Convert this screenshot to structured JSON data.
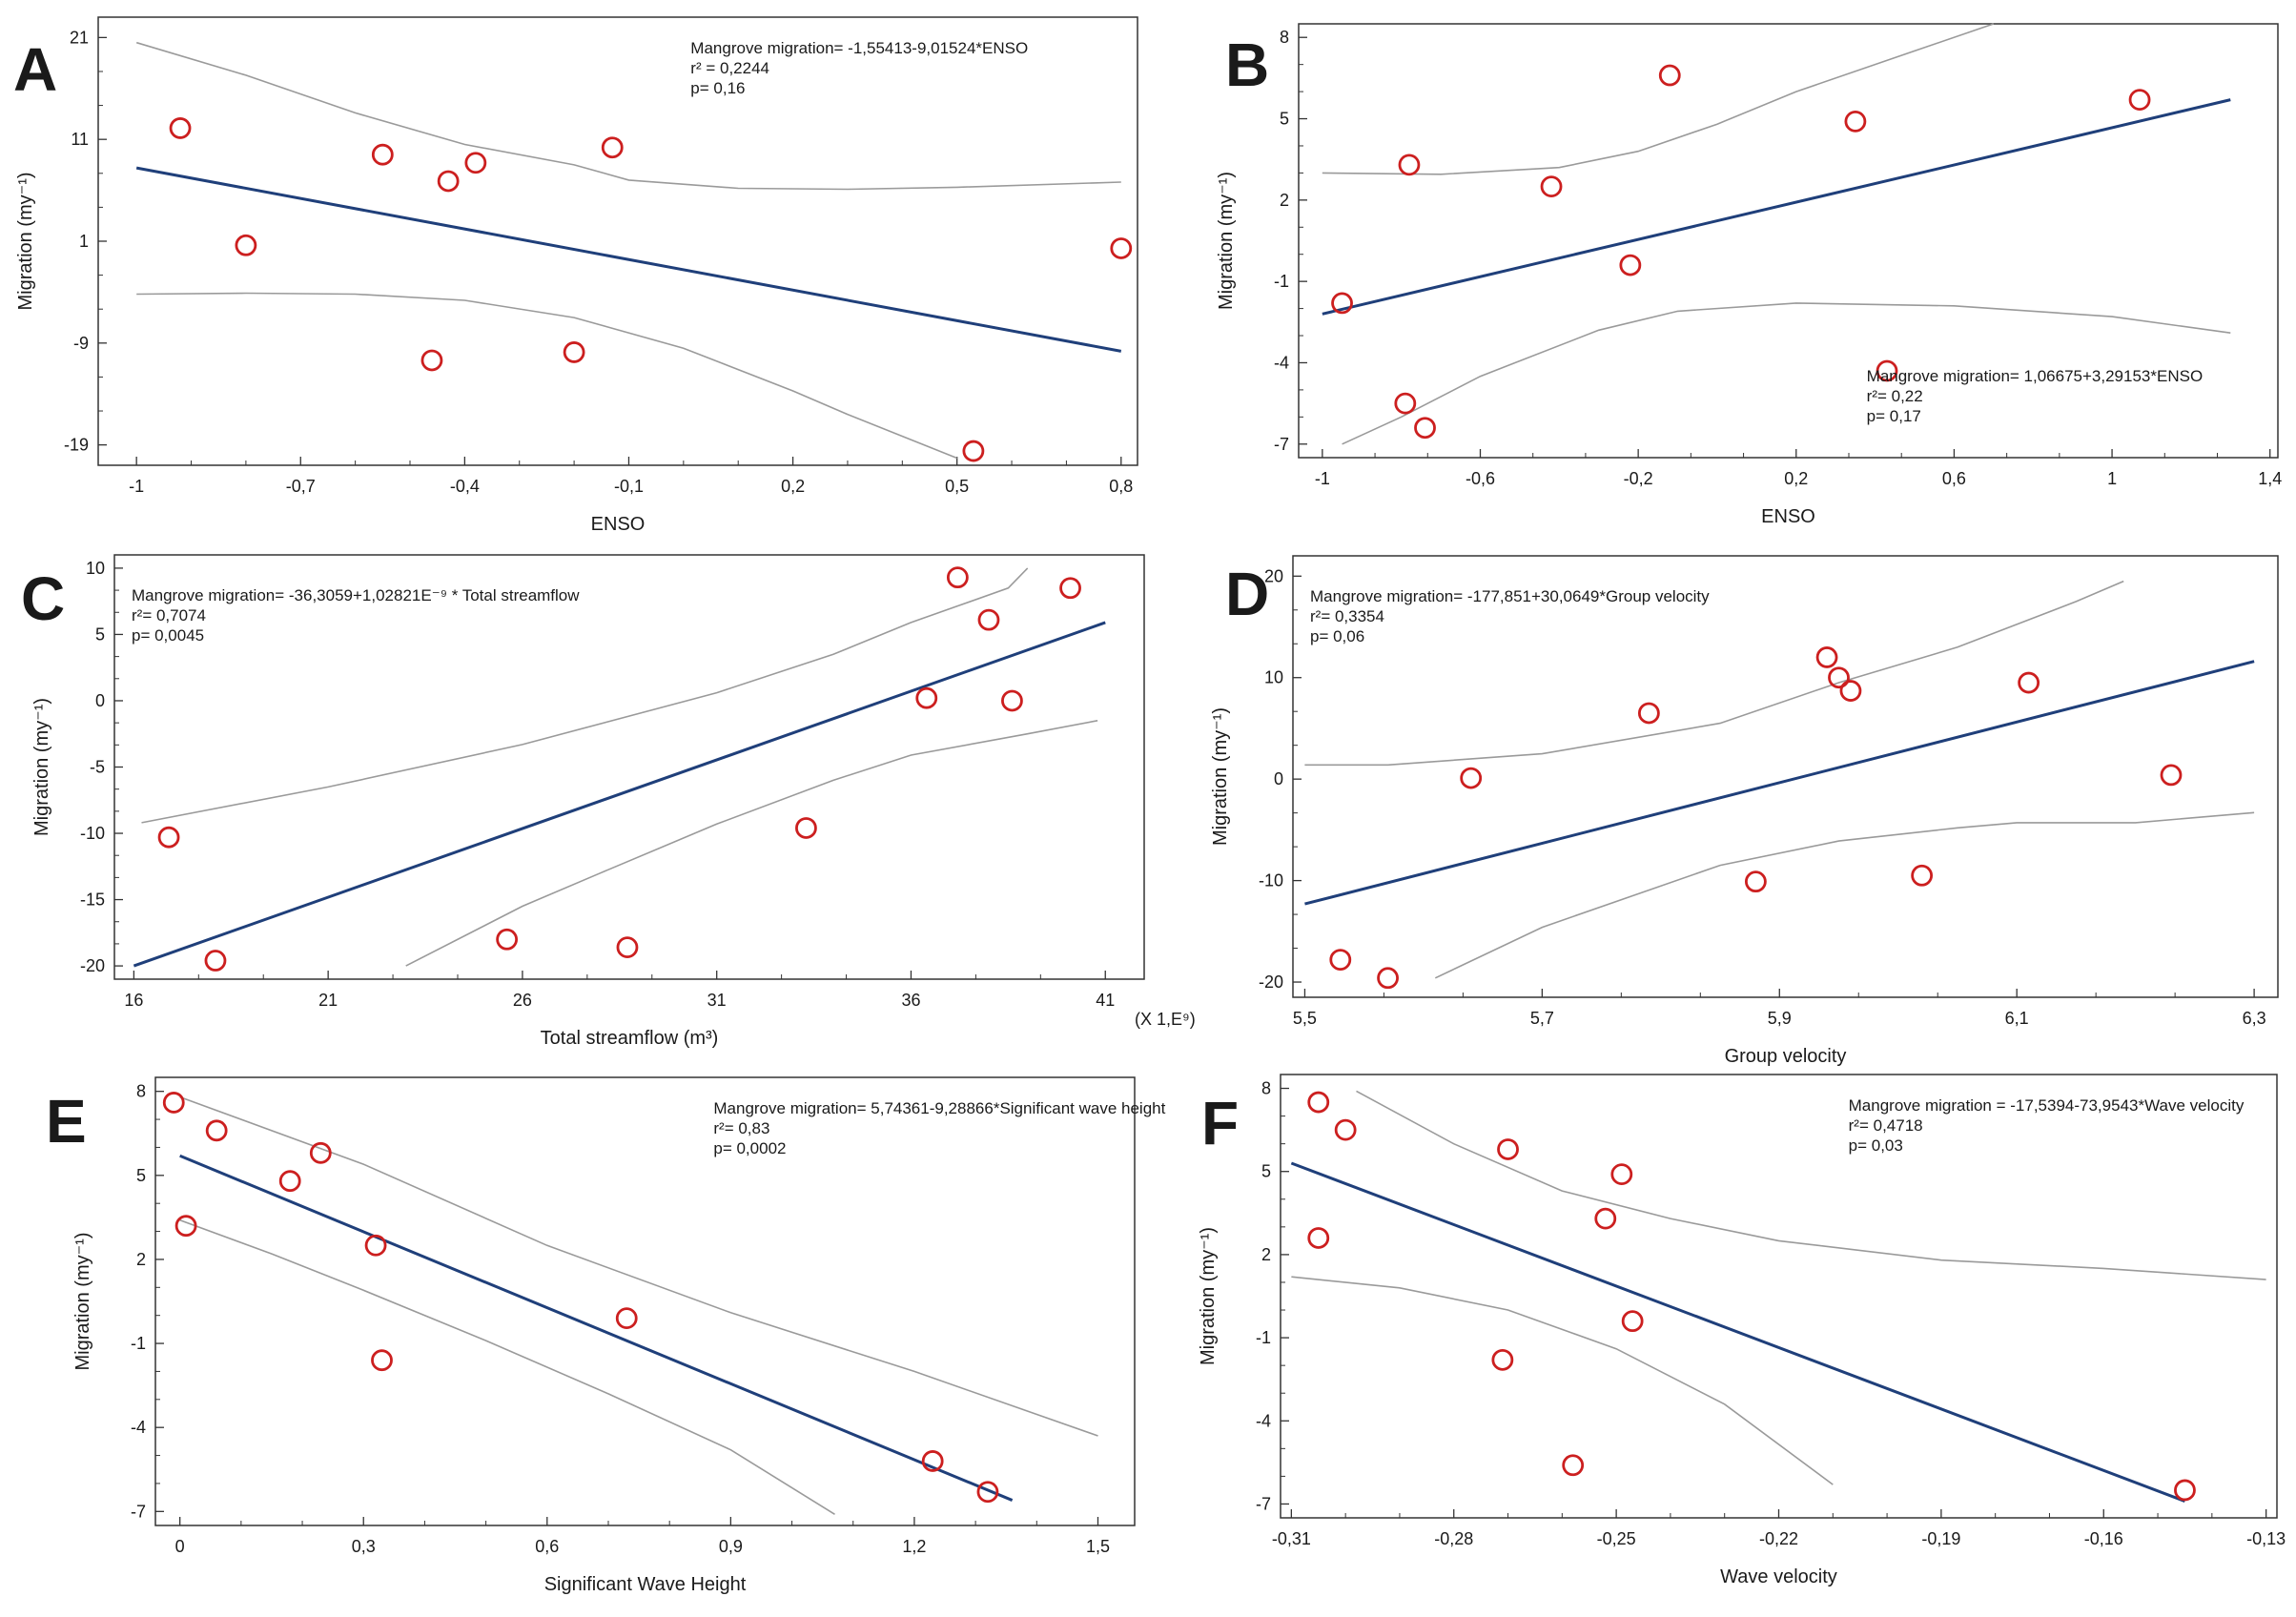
{
  "colors": {
    "regression": "#1f3f7a",
    "confidence": "#9a9a9a",
    "points": "#cc1f1f",
    "axis": "#333333"
  },
  "chart_data": [
    {
      "panel": "A",
      "type": "scatter",
      "xlabel": "ENSO",
      "ylabel": "Migration (my⁻¹)",
      "x_multiplier": "",
      "xlim": [
        -1.07,
        0.83
      ],
      "ylim": [
        -21,
        23
      ],
      "xticks": [
        -1,
        -0.7,
        -0.4,
        -0.1,
        0.2,
        0.5,
        0.8
      ],
      "xtick_labels": [
        "-1",
        "-0,7",
        "-0,4",
        "-0,1",
        "0,2",
        "0,5",
        "0,8"
      ],
      "yticks": [
        21,
        11,
        1,
        -9,
        -19
      ],
      "ytick_labels": [
        "21",
        "11",
        "1",
        "-9",
        "-19"
      ],
      "equation": "Mangrove migration= -1,55413-9,01524*ENSO",
      "r2": "r² = 0,2244",
      "p": "p= 0,16",
      "eq_position": "top-right",
      "points": [
        [
          -0.92,
          12.1
        ],
        [
          -0.8,
          0.6
        ],
        [
          -0.55,
          9.5
        ],
        [
          -0.46,
          -10.7
        ],
        [
          -0.43,
          6.9
        ],
        [
          -0.38,
          8.7
        ],
        [
          -0.2,
          -9.9
        ],
        [
          -0.13,
          10.2
        ],
        [
          0.53,
          -19.6
        ],
        [
          0.8,
          0.3
        ]
      ],
      "fit": [
        [
          -1,
          8.2
        ],
        [
          0.8,
          -9.8
        ]
      ],
      "ci_upper": [
        [
          -1,
          20.5
        ],
        [
          -0.8,
          17.3
        ],
        [
          -0.6,
          13.6
        ],
        [
          -0.4,
          10.5
        ],
        [
          -0.2,
          8.5
        ],
        [
          -0.1,
          7
        ],
        [
          0.1,
          6.2
        ],
        [
          0.3,
          6.1
        ],
        [
          0.5,
          6.3
        ],
        [
          0.8,
          6.8
        ]
      ],
      "ci_lower": [
        [
          -1,
          -4.2
        ],
        [
          -0.8,
          -4.1
        ],
        [
          -0.6,
          -4.2
        ],
        [
          -0.4,
          -4.8
        ],
        [
          -0.2,
          -6.5
        ],
        [
          0,
          -9.5
        ],
        [
          0.2,
          -13.7
        ],
        [
          0.3,
          -16
        ],
        [
          0.5,
          -20.3
        ]
      ]
    },
    {
      "panel": "B",
      "type": "scatter",
      "xlabel": "ENSO",
      "ylabel": "Migration (my⁻¹)",
      "x_multiplier": "",
      "xlim": [
        -1.06,
        1.42
      ],
      "ylim": [
        -7.5,
        8.5
      ],
      "xticks": [
        -1,
        -0.6,
        -0.2,
        0.2,
        0.6,
        1,
        1.4
      ],
      "xtick_labels": [
        "-1",
        "-0,6",
        "-0,2",
        "0,2",
        "0,6",
        "1",
        "1,4"
      ],
      "yticks": [
        8,
        5,
        2,
        -1,
        -4,
        -7
      ],
      "ytick_labels": [
        "8",
        "5",
        "2",
        "-1",
        "-4",
        "-7"
      ],
      "equation": "Mangrove migration= 1,06675+3,29153*ENSO",
      "r2": "r²= 0,22",
      "p": "p= 0,17",
      "eq_position": "bottom-right",
      "points": [
        [
          -0.95,
          -1.8
        ],
        [
          -0.78,
          3.3
        ],
        [
          -0.79,
          -5.5
        ],
        [
          -0.74,
          -6.4
        ],
        [
          -0.42,
          2.5
        ],
        [
          -0.22,
          -0.4
        ],
        [
          -0.12,
          6.6
        ],
        [
          0.35,
          4.9
        ],
        [
          0.43,
          -4.3
        ],
        [
          1.07,
          5.7
        ]
      ],
      "fit": [
        [
          -1,
          -2.2
        ],
        [
          1.3,
          5.7
        ]
      ],
      "ci_upper": [
        [
          -1,
          3
        ],
        [
          -0.7,
          2.95
        ],
        [
          -0.4,
          3.2
        ],
        [
          -0.2,
          3.8
        ],
        [
          0,
          4.8
        ],
        [
          0.2,
          6
        ],
        [
          0.5,
          7.5
        ],
        [
          0.7,
          8.5
        ]
      ],
      "ci_lower": [
        [
          -0.95,
          -7
        ],
        [
          -0.8,
          -6
        ],
        [
          -0.6,
          -4.5
        ],
        [
          -0.3,
          -2.8
        ],
        [
          -0.1,
          -2.1
        ],
        [
          0.2,
          -1.8
        ],
        [
          0.6,
          -1.9
        ],
        [
          1,
          -2.3
        ],
        [
          1.3,
          -2.9
        ]
      ]
    },
    {
      "panel": "C",
      "type": "scatter",
      "xlabel": "Total streamflow (m³)",
      "ylabel": "Migration (my⁻¹)",
      "x_multiplier": "(X 1,E⁹)",
      "xlim": [
        15.5,
        42
      ],
      "ylim": [
        -21,
        11
      ],
      "xticks": [
        16,
        21,
        26,
        31,
        36,
        41
      ],
      "xtick_labels": [
        "16",
        "21",
        "26",
        "31",
        "36",
        "41"
      ],
      "yticks": [
        10,
        5,
        0,
        -5,
        -10,
        -15,
        -20
      ],
      "ytick_labels": [
        "10",
        "5",
        "0",
        "-5",
        "-10",
        "-15",
        "-20"
      ],
      "equation": "Mangrove migration= -36,3059+1,02821E⁻⁹ * Total streamflow",
      "r2": "r²= 0,7074",
      "p": "p= 0,0045",
      "eq_position": "top-left",
      "points": [
        [
          16.9,
          -10.3
        ],
        [
          18.1,
          -19.6
        ],
        [
          25.6,
          -18
        ],
        [
          28.7,
          -18.6
        ],
        [
          33.3,
          -9.6
        ],
        [
          36.4,
          0.2
        ],
        [
          37.2,
          9.3
        ],
        [
          38,
          6.1
        ],
        [
          38.6,
          0
        ],
        [
          40.1,
          8.5
        ]
      ],
      "fit": [
        [
          16,
          -20
        ],
        [
          41,
          5.9
        ]
      ],
      "ci_upper": [
        [
          16.2,
          -9.2
        ],
        [
          21,
          -6.5
        ],
        [
          26,
          -3.3
        ],
        [
          31,
          0.6
        ],
        [
          34,
          3.5
        ],
        [
          36,
          5.9
        ],
        [
          38.5,
          8.5
        ],
        [
          39,
          10
        ]
      ],
      "ci_lower": [
        [
          23,
          -20
        ],
        [
          26,
          -15.5
        ],
        [
          28,
          -13
        ],
        [
          31,
          -9.3
        ],
        [
          34,
          -6
        ],
        [
          36,
          -4.1
        ],
        [
          39,
          -2.5
        ],
        [
          40.8,
          -1.5
        ]
      ]
    },
    {
      "panel": "D",
      "type": "scatter",
      "xlabel": "Group velocity",
      "ylabel": "Migration (my⁻¹)",
      "x_multiplier": "",
      "xlim": [
        5.49,
        6.32
      ],
      "ylim": [
        -21.5,
        22
      ],
      "xticks": [
        5.5,
        5.7,
        5.9,
        6.1,
        6.3
      ],
      "xtick_labels": [
        "5,5",
        "5,7",
        "5,9",
        "6,1",
        "6,3"
      ],
      "yticks": [
        20,
        10,
        0,
        -10,
        -20
      ],
      "ytick_labels": [
        "20",
        "10",
        "0",
        "-10",
        "-20"
      ],
      "equation": "Mangrove migration= -177,851+30,0649*Group velocity",
      "r2": "r²= 0,3354",
      "p": "p= 0,06",
      "eq_position": "top-left",
      "points": [
        [
          5.53,
          -17.8
        ],
        [
          5.57,
          -19.6
        ],
        [
          5.64,
          0.1
        ],
        [
          5.79,
          6.5
        ],
        [
          5.88,
          -10.1
        ],
        [
          5.94,
          12
        ],
        [
          5.95,
          10
        ],
        [
          5.96,
          8.7
        ],
        [
          6.02,
          -9.5
        ],
        [
          6.11,
          9.5
        ],
        [
          6.23,
          0.4
        ]
      ],
      "fit": [
        [
          5.5,
          -12.3
        ],
        [
          6.3,
          11.6
        ]
      ],
      "ci_upper": [
        [
          5.5,
          1.4
        ],
        [
          5.57,
          1.4
        ],
        [
          5.7,
          2.5
        ],
        [
          5.85,
          5.5
        ],
        [
          5.95,
          9.5
        ],
        [
          6.05,
          13
        ],
        [
          6.15,
          17.5
        ],
        [
          6.19,
          19.5
        ]
      ],
      "ci_lower": [
        [
          5.61,
          -19.6
        ],
        [
          5.7,
          -14.6
        ],
        [
          5.85,
          -8.5
        ],
        [
          5.95,
          -6.1
        ],
        [
          6.05,
          -4.8
        ],
        [
          6.1,
          -4.3
        ],
        [
          6.2,
          -4.3
        ],
        [
          6.3,
          -3.3
        ]
      ]
    },
    {
      "panel": "E",
      "type": "scatter",
      "xlabel": "Significant Wave Height",
      "ylabel": "Migration (my⁻¹)",
      "x_multiplier": "",
      "xlim": [
        -0.04,
        1.56
      ],
      "ylim": [
        -7.5,
        8.5
      ],
      "xticks": [
        0,
        0.3,
        0.6,
        0.9,
        1.2,
        1.5
      ],
      "xtick_labels": [
        "0",
        "0,3",
        "0,6",
        "0,9",
        "1,2",
        "1,5"
      ],
      "yticks": [
        8,
        5,
        2,
        -1,
        -4,
        -7
      ],
      "ytick_labels": [
        "8",
        "5",
        "2",
        "-1",
        "-4",
        "-7"
      ],
      "equation": "Mangrove migration= 5,74361-9,28866*Significant wave height",
      "r2": "r²= 0,83",
      "p": "p= 0,0002",
      "eq_position": "top-right",
      "points": [
        [
          -0.01,
          7.6
        ],
        [
          0.01,
          3.2
        ],
        [
          0.06,
          6.6
        ],
        [
          0.18,
          4.8
        ],
        [
          0.23,
          5.8
        ],
        [
          0.32,
          2.5
        ],
        [
          0.33,
          -1.6
        ],
        [
          0.73,
          -0.1
        ],
        [
          1.23,
          -5.2
        ],
        [
          1.32,
          -6.3
        ]
      ],
      "fit": [
        [
          0,
          5.7
        ],
        [
          1.36,
          -6.6
        ]
      ],
      "ci_upper": [
        [
          0,
          7.8
        ],
        [
          0.3,
          5.4
        ],
        [
          0.6,
          2.5
        ],
        [
          0.9,
          0.1
        ],
        [
          1.2,
          -2
        ],
        [
          1.5,
          -4.3
        ]
      ],
      "ci_lower": [
        [
          0,
          3.4
        ],
        [
          0.15,
          2.2
        ],
        [
          0.3,
          0.9
        ],
        [
          0.5,
          -0.9
        ],
        [
          0.7,
          -2.8
        ],
        [
          0.9,
          -4.8
        ],
        [
          1.07,
          -7.1
        ]
      ]
    },
    {
      "panel": "F",
      "type": "scatter",
      "xlabel": "Wave velocity",
      "ylabel": "Migration (my⁻¹)",
      "x_multiplier": "",
      "xlim": [
        -0.312,
        -0.128
      ],
      "ylim": [
        -7.5,
        8.5
      ],
      "xticks": [
        -0.31,
        -0.28,
        -0.25,
        -0.22,
        -0.19,
        -0.16,
        -0.13
      ],
      "xtick_labels": [
        "-0,31",
        "-0,28",
        "-0,25",
        "-0,22",
        "-0,19",
        "-0,16",
        "-0,13"
      ],
      "yticks": [
        8,
        5,
        2,
        -1,
        -4,
        -7
      ],
      "ytick_labels": [
        "8",
        "5",
        "2",
        "-1",
        "-4",
        "-7"
      ],
      "equation": "Mangrove migration = -17,5394-73,9543*Wave velocity",
      "r2": "r²= 0,4718",
      "p": "p= 0,03",
      "eq_position": "top-right",
      "points": [
        [
          -0.305,
          7.5
        ],
        [
          -0.305,
          2.6
        ],
        [
          -0.3,
          6.5
        ],
        [
          -0.27,
          5.8
        ],
        [
          -0.271,
          -1.8
        ],
        [
          -0.258,
          -5.6
        ],
        [
          -0.252,
          3.3
        ],
        [
          -0.249,
          4.9
        ],
        [
          -0.247,
          -0.4
        ],
        [
          -0.145,
          -6.5
        ]
      ],
      "fit": [
        [
          -0.31,
          5.3
        ],
        [
          -0.145,
          -6.9
        ]
      ],
      "ci_upper": [
        [
          -0.298,
          7.9
        ],
        [
          -0.28,
          6
        ],
        [
          -0.26,
          4.3
        ],
        [
          -0.24,
          3.3
        ],
        [
          -0.22,
          2.5
        ],
        [
          -0.19,
          1.8
        ],
        [
          -0.16,
          1.5
        ],
        [
          -0.13,
          1.1
        ]
      ],
      "ci_lower": [
        [
          -0.31,
          1.2
        ],
        [
          -0.29,
          0.8
        ],
        [
          -0.27,
          0
        ],
        [
          -0.25,
          -1.4
        ],
        [
          -0.23,
          -3.4
        ],
        [
          -0.21,
          -6.3
        ]
      ]
    }
  ]
}
